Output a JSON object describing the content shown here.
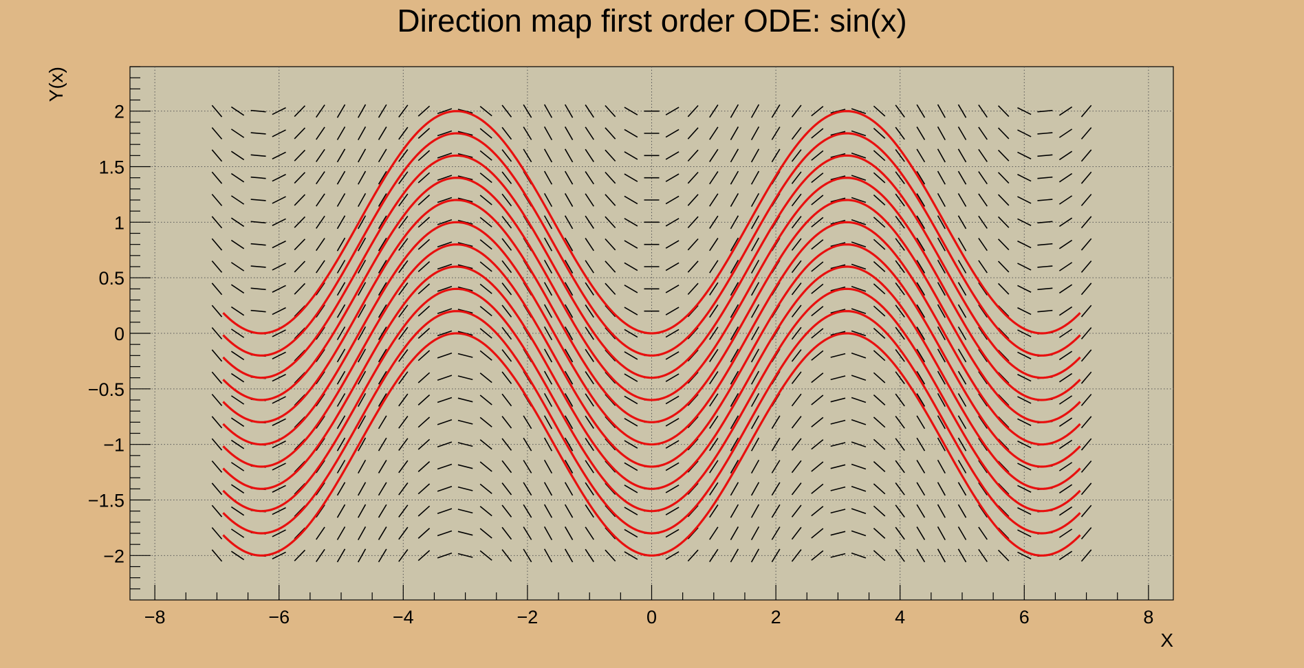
{
  "chart_data": {
    "type": "line",
    "title": "Direction map first order ODE: sin(x)",
    "xlabel": "X",
    "ylabel": "Y(x)",
    "xlim": [
      -8.4,
      8.4
    ],
    "ylim": [
      -2.4,
      2.4
    ],
    "x_ticks": [
      -8,
      -6,
      -4,
      -2,
      0,
      2,
      4,
      6,
      8
    ],
    "x_tick_labels": [
      "−8",
      "−6",
      "−4",
      "−2",
      "0",
      "2",
      "4",
      "6",
      "8"
    ],
    "y_ticks": [
      -2,
      -1.5,
      -1,
      -0.5,
      0,
      0.5,
      1,
      1.5,
      2
    ],
    "y_tick_labels": [
      "−2",
      "−1.5",
      "−1",
      "−0.5",
      "0",
      "0.5",
      "1",
      "1.5",
      "2"
    ],
    "grid": true,
    "direction_field": {
      "equation": "dy/dx = sin(x)",
      "x_range": [
        -7,
        7
      ],
      "y_range": [
        -2,
        2
      ],
      "nx": 43,
      "ny": 21,
      "color": "#000000"
    },
    "solution_curves": {
      "function": "y = -cos(x) + c",
      "x_range": [
        -6.9,
        6.9
      ],
      "constants": [
        -1,
        -0.8,
        -0.6,
        -0.4,
        -0.2,
        0,
        0.2,
        0.4,
        0.6,
        0.8,
        1
      ],
      "color": "#e8100f"
    },
    "colors": {
      "page_background": "#dfb886",
      "plot_background": "#cbc4aa",
      "grid": "#555555"
    }
  }
}
